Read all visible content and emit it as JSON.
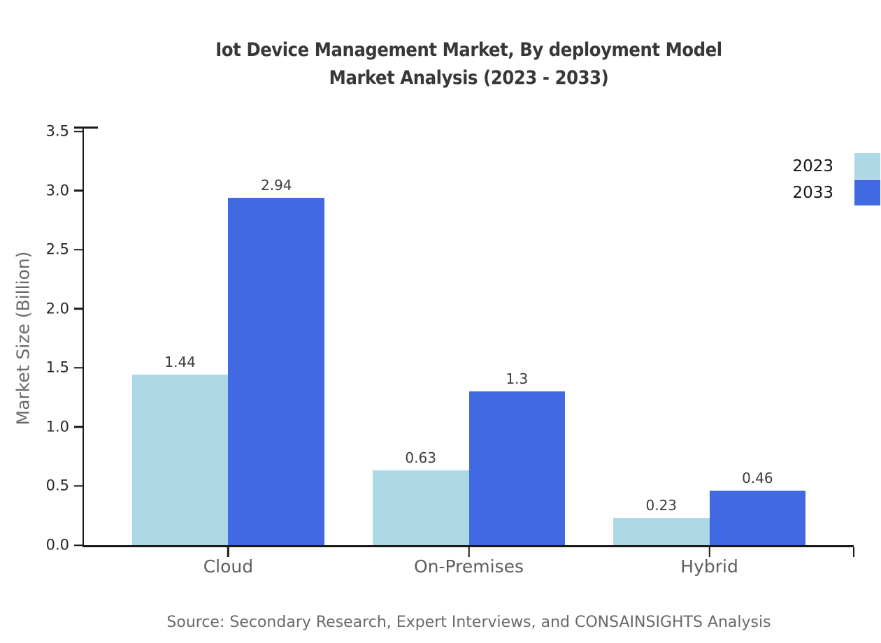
{
  "title": {
    "line1": "Iot Device Management Market, By deployment Model",
    "line2": "Market Analysis (2023 - 2033)"
  },
  "source": "Source: Secondary Research, Expert Interviews, and CONSAINSIGHTS Analysis",
  "chart_data": {
    "type": "bar",
    "title": "Iot Device Management Market, By deployment Model Market Analysis (2023 - 2033)",
    "categories": [
      "Cloud",
      "On-Premises",
      "Hybrid"
    ],
    "series": [
      {
        "name": "2023",
        "color": "#ADD8E6",
        "values": [
          1.44,
          0.63,
          0.23
        ],
        "labels": [
          "1.44",
          "0.63",
          "0.23"
        ]
      },
      {
        "name": "2033",
        "color": "#4169E1",
        "values": [
          2.94,
          1.3,
          0.46
        ],
        "labels": [
          "2.94",
          "1.3",
          "0.46"
        ]
      }
    ],
    "xlabel": "",
    "ylabel": "Market Size (Billion)",
    "ylim": [
      0,
      3.5
    ],
    "yticks": [
      0,
      0.5,
      1,
      1.5,
      2,
      2.5,
      3,
      3.5
    ],
    "grid": false,
    "legend_position": "upper right"
  }
}
